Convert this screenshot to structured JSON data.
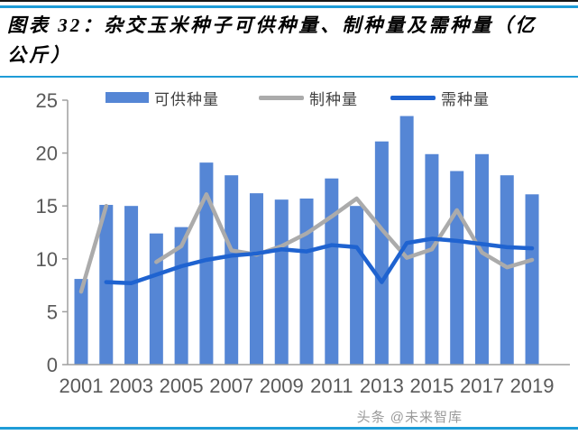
{
  "page": {
    "title_line1": "图表 32：杂交玉米种子可供种量、制种量及需种量（亿",
    "title_line2": "公斤）",
    "watermark": "头条 @未来智库"
  },
  "colors": {
    "rule_blue": "#1E9CD7",
    "bar_blue": "#5586D5",
    "line_blue": "#1F63D0",
    "line_gray": "#ABABAB",
    "axis_text": "#595959",
    "axis_line": "#9F9F9F",
    "legend_text": "#404040",
    "watermark_gray": "#9A9A9A"
  },
  "chart_data": {
    "type": "bar",
    "subtype": "bar-and-line-combo",
    "title": "杂交玉米种子可供种量、制种量及需种量（亿公斤）",
    "unit": "亿公斤",
    "xlabel": "",
    "ylabel": "",
    "ylim": [
      0,
      25
    ],
    "yticks": [
      0,
      5,
      10,
      15,
      20,
      25
    ],
    "grid": "off",
    "legend_position": "top",
    "x_tick_step": 2,
    "categories": [
      2001,
      2002,
      2003,
      2004,
      2005,
      2006,
      2007,
      2008,
      2009,
      2010,
      2011,
      2012,
      2013,
      2014,
      2015,
      2016,
      2017,
      2018,
      2019
    ],
    "series": [
      {
        "name": "可供种量",
        "key": "available-seed",
        "type": "bar",
        "color": "#5586D5",
        "values": [
          8.1,
          15.1,
          15.0,
          12.4,
          13.0,
          19.1,
          17.9,
          16.2,
          15.6,
          15.7,
          17.6,
          15.0,
          21.1,
          23.5,
          19.9,
          18.3,
          19.9,
          17.9,
          16.1
        ]
      },
      {
        "name": "制种量",
        "key": "seed-production",
        "type": "line",
        "color": "#ABABAB",
        "values": [
          6.9,
          15.0,
          null,
          9.7,
          11.2,
          16.1,
          10.8,
          10.4,
          11.2,
          12.4,
          14.0,
          15.7,
          12.8,
          10.1,
          10.9,
          14.6,
          10.6,
          9.2,
          9.9
        ]
      },
      {
        "name": "需种量",
        "key": "seed-demand",
        "type": "line",
        "color": "#1F63D0",
        "values": [
          null,
          7.8,
          7.7,
          8.5,
          9.3,
          9.9,
          10.3,
          10.5,
          10.9,
          10.7,
          11.3,
          11.1,
          7.8,
          11.5,
          11.9,
          11.7,
          11.4,
          11.1,
          11.0
        ]
      }
    ]
  }
}
